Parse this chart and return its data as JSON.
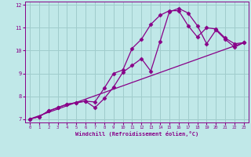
{
  "xlabel": "Windchill (Refroidissement éolien,°C)",
  "xlim": [
    -0.5,
    23.5
  ],
  "ylim": [
    6.85,
    12.15
  ],
  "xticks": [
    0,
    1,
    2,
    3,
    4,
    5,
    6,
    7,
    8,
    9,
    10,
    11,
    12,
    13,
    14,
    15,
    16,
    17,
    18,
    19,
    20,
    21,
    22,
    23
  ],
  "yticks": [
    7,
    8,
    9,
    10,
    11,
    12
  ],
  "bg_color": "#c0e8e8",
  "grid_color": "#a0cccc",
  "line_color": "#880088",
  "line1_x": [
    0,
    1,
    2,
    3,
    4,
    5,
    6,
    7,
    8,
    9,
    10,
    11,
    12,
    13,
    14,
    15,
    16,
    17,
    18,
    19,
    20,
    21,
    22,
    23
  ],
  "line1_y": [
    7.0,
    7.1,
    7.35,
    7.5,
    7.65,
    7.72,
    7.78,
    7.75,
    8.35,
    9.0,
    9.15,
    10.1,
    10.5,
    11.15,
    11.55,
    11.75,
    11.75,
    11.1,
    10.6,
    11.0,
    10.95,
    10.55,
    10.3,
    10.35
  ],
  "line2_x": [
    0,
    1,
    2,
    3,
    4,
    5,
    6,
    7,
    8,
    9,
    10,
    11,
    12,
    13,
    14,
    15,
    16,
    17,
    18,
    19,
    20,
    21,
    22,
    23
  ],
  "line2_y": [
    7.0,
    7.1,
    7.35,
    7.5,
    7.65,
    7.72,
    7.78,
    7.5,
    7.9,
    8.4,
    9.05,
    9.35,
    9.65,
    9.1,
    10.4,
    11.7,
    11.85,
    11.65,
    11.1,
    10.3,
    10.9,
    10.5,
    10.15,
    10.35
  ],
  "line3_x": [
    0,
    23
  ],
  "line3_y": [
    7.0,
    10.35
  ],
  "marker": "D",
  "markersize": 2.5,
  "linewidth": 0.9
}
